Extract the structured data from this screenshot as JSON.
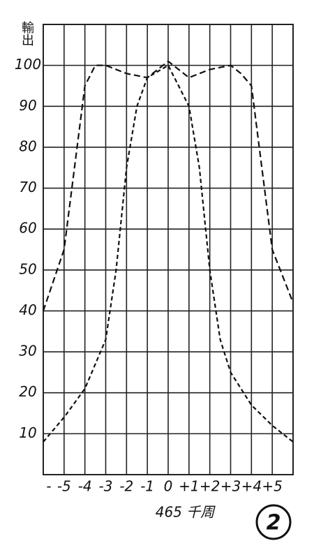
{
  "chart_data": {
    "type": "line",
    "y_label": "輸出",
    "x_label": "465 千周",
    "figure_number": "2",
    "xlim": [
      -6,
      6
    ],
    "ylim": [
      0,
      110
    ],
    "xticks": [
      {
        "value": -6,
        "label": "-"
      },
      {
        "value": -5,
        "label": "-5"
      },
      {
        "value": -4,
        "label": "-4"
      },
      {
        "value": -3,
        "label": "-3"
      },
      {
        "value": -2,
        "label": "-2"
      },
      {
        "value": -1,
        "label": "-1"
      },
      0,
      {
        "value": 1,
        "label": "+1"
      },
      {
        "value": 2,
        "label": "+2"
      },
      {
        "value": 3,
        "label": "+3"
      },
      {
        "value": 4,
        "label": "+4"
      },
      {
        "value": 5,
        "label": "+5"
      }
    ],
    "yticks": [
      10,
      20,
      30,
      40,
      50,
      60,
      70,
      80,
      90,
      100
    ],
    "grid": true,
    "series": [
      {
        "color": "#111",
        "dash": "9 5",
        "x": [
          -6,
          -5,
          -4.5,
          -4,
          -3.5,
          -3,
          -2,
          -1,
          0,
          1,
          2,
          3,
          3.5,
          4,
          4.5,
          5,
          6
        ],
        "values": [
          40,
          55,
          75,
          95,
          100,
          100,
          98,
          97,
          101,
          97,
          99,
          100,
          98,
          95,
          75,
          55,
          42
        ]
      },
      {
        "color": "#111",
        "dash": "6 4",
        "x": [
          -6,
          -5,
          -4,
          -3,
          -2.5,
          -2,
          -1.5,
          -1,
          0,
          1,
          1.5,
          2,
          2.5,
          3,
          4,
          5,
          6
        ],
        "values": [
          8,
          14,
          21,
          33,
          50,
          75,
          90,
          97,
          100,
          90,
          75,
          50,
          33,
          25,
          17,
          12,
          8
        ]
      }
    ]
  }
}
